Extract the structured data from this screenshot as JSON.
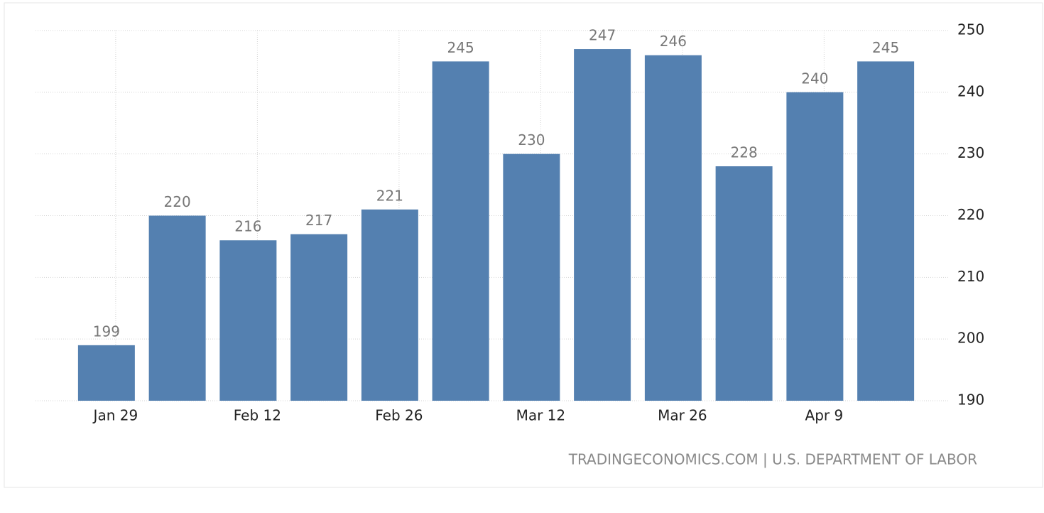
{
  "chart_data": {
    "type": "bar",
    "categories": [
      "Jan 29",
      null,
      "Feb 12",
      null,
      "Feb 26",
      null,
      "Mar 12",
      null,
      "Mar 26",
      null,
      "Apr 9",
      null
    ],
    "values": [
      199,
      220,
      216,
      217,
      221,
      245,
      230,
      247,
      246,
      228,
      240,
      245
    ],
    "color": "#5480b0",
    "ylim": [
      190,
      250
    ],
    "yticks": [
      190,
      200,
      210,
      220,
      230,
      240,
      250
    ],
    "grid": true,
    "source": "TRADINGECONOMICS.COM | U.S. DEPARTMENT OF LABOR"
  }
}
